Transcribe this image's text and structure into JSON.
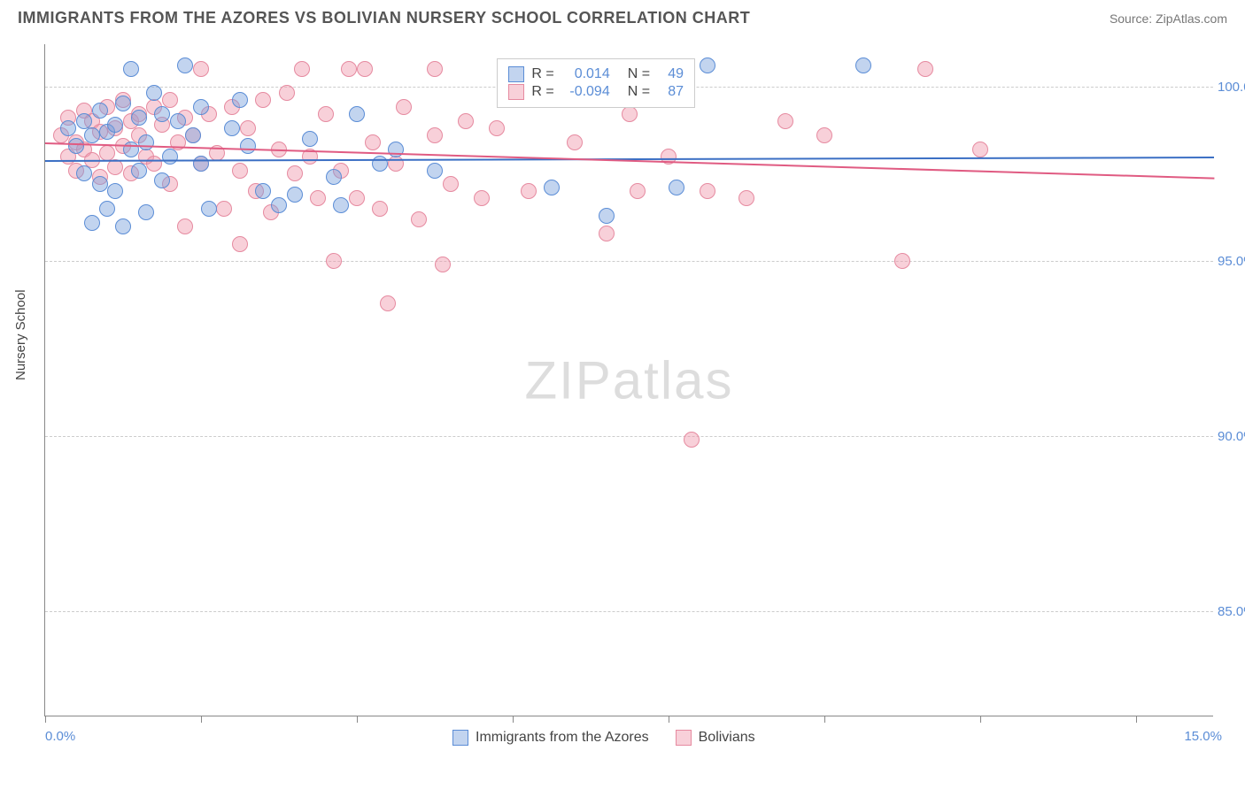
{
  "title": "IMMIGRANTS FROM THE AZORES VS BOLIVIAN NURSERY SCHOOL CORRELATION CHART",
  "source": "Source: ZipAtlas.com",
  "watermark_left": "ZIP",
  "watermark_right": "atlas",
  "yaxis_label": "Nursery School",
  "chart": {
    "type": "scatter",
    "xlim": [
      0,
      15
    ],
    "ylim": [
      82,
      101.2
    ],
    "xticks": [
      0,
      2,
      4,
      6,
      8,
      10,
      12,
      14
    ],
    "yticks": [
      85,
      90,
      95,
      100
    ],
    "xaxis_labels": {
      "left": "0.0%",
      "right": "15.0%"
    },
    "y_format_suffix": ".0%",
    "grid_color": "#cccccc",
    "background_color": "#ffffff",
    "marker_radius": 9,
    "marker_stroke": 1,
    "series": [
      {
        "name": "Immigrants from the Azores",
        "fill": "rgba(120,160,220,0.45)",
        "stroke": "#5b8dd6",
        "r": "0.014",
        "n": "49",
        "trend": {
          "y_at_x0": 97.9,
          "y_at_x15": 98.0,
          "color": "#3b6fc4",
          "width": 2
        },
        "points": [
          [
            0.3,
            98.8
          ],
          [
            0.4,
            98.3
          ],
          [
            0.5,
            99.0
          ],
          [
            0.5,
            97.5
          ],
          [
            0.6,
            98.6
          ],
          [
            0.6,
            96.1
          ],
          [
            0.7,
            99.3
          ],
          [
            0.7,
            97.2
          ],
          [
            0.8,
            98.7
          ],
          [
            0.8,
            96.5
          ],
          [
            0.9,
            98.9
          ],
          [
            0.9,
            97.0
          ],
          [
            1.0,
            99.5
          ],
          [
            1.0,
            96.0
          ],
          [
            1.1,
            100.5
          ],
          [
            1.1,
            98.2
          ],
          [
            1.2,
            99.1
          ],
          [
            1.2,
            97.6
          ],
          [
            1.3,
            98.4
          ],
          [
            1.3,
            96.4
          ],
          [
            1.4,
            99.8
          ],
          [
            1.5,
            99.2
          ],
          [
            1.5,
            97.3
          ],
          [
            1.6,
            98.0
          ],
          [
            1.7,
            99.0
          ],
          [
            1.8,
            100.6
          ],
          [
            1.9,
            98.6
          ],
          [
            2.0,
            99.4
          ],
          [
            2.0,
            97.8
          ],
          [
            2.1,
            96.5
          ],
          [
            2.4,
            98.8
          ],
          [
            2.5,
            99.6
          ],
          [
            2.6,
            98.3
          ],
          [
            2.8,
            97.0
          ],
          [
            3.0,
            96.6
          ],
          [
            3.2,
            96.9
          ],
          [
            3.4,
            98.5
          ],
          [
            3.7,
            97.4
          ],
          [
            3.8,
            96.6
          ],
          [
            4.0,
            99.2
          ],
          [
            4.3,
            97.8
          ],
          [
            4.5,
            98.2
          ],
          [
            5.0,
            97.6
          ],
          [
            6.5,
            97.1
          ],
          [
            7.2,
            96.3
          ],
          [
            8.1,
            97.1
          ],
          [
            8.5,
            100.6
          ],
          [
            10.5,
            100.6
          ],
          [
            8.0,
            100.5
          ]
        ]
      },
      {
        "name": "Bolivians",
        "fill": "rgba(240,150,170,0.45)",
        "stroke": "#e68aa0",
        "r": "-0.094",
        "n": "87",
        "trend": {
          "y_at_x0": 98.4,
          "y_at_x15": 97.4,
          "color": "#e05b82",
          "width": 2
        },
        "points": [
          [
            0.2,
            98.6
          ],
          [
            0.3,
            99.1
          ],
          [
            0.3,
            98.0
          ],
          [
            0.4,
            98.4
          ],
          [
            0.4,
            97.6
          ],
          [
            0.5,
            99.3
          ],
          [
            0.5,
            98.2
          ],
          [
            0.6,
            99.0
          ],
          [
            0.6,
            97.9
          ],
          [
            0.7,
            98.7
          ],
          [
            0.7,
            97.4
          ],
          [
            0.8,
            99.4
          ],
          [
            0.8,
            98.1
          ],
          [
            0.9,
            98.8
          ],
          [
            0.9,
            97.7
          ],
          [
            1.0,
            99.6
          ],
          [
            1.0,
            98.3
          ],
          [
            1.1,
            99.0
          ],
          [
            1.1,
            97.5
          ],
          [
            1.2,
            98.6
          ],
          [
            1.2,
            99.2
          ],
          [
            1.3,
            98.0
          ],
          [
            1.4,
            99.4
          ],
          [
            1.4,
            97.8
          ],
          [
            1.5,
            98.9
          ],
          [
            1.6,
            99.6
          ],
          [
            1.6,
            97.2
          ],
          [
            1.7,
            98.4
          ],
          [
            1.8,
            99.1
          ],
          [
            1.8,
            96.0
          ],
          [
            1.9,
            98.6
          ],
          [
            2.0,
            100.5
          ],
          [
            2.0,
            97.8
          ],
          [
            2.1,
            99.2
          ],
          [
            2.2,
            98.1
          ],
          [
            2.3,
            96.5
          ],
          [
            2.4,
            99.4
          ],
          [
            2.5,
            97.6
          ],
          [
            2.5,
            95.5
          ],
          [
            2.6,
            98.8
          ],
          [
            2.7,
            97.0
          ],
          [
            2.8,
            99.6
          ],
          [
            2.9,
            96.4
          ],
          [
            3.0,
            98.2
          ],
          [
            3.1,
            99.8
          ],
          [
            3.2,
            97.5
          ],
          [
            3.3,
            100.5
          ],
          [
            3.4,
            98.0
          ],
          [
            3.5,
            96.8
          ],
          [
            3.6,
            99.2
          ],
          [
            3.7,
            95.0
          ],
          [
            3.8,
            97.6
          ],
          [
            3.9,
            100.5
          ],
          [
            4.0,
            96.8
          ],
          [
            4.1,
            100.5
          ],
          [
            4.2,
            98.4
          ],
          [
            4.3,
            96.5
          ],
          [
            4.4,
            93.8
          ],
          [
            4.5,
            97.8
          ],
          [
            4.6,
            99.4
          ],
          [
            4.8,
            96.2
          ],
          [
            5.0,
            100.5
          ],
          [
            5.0,
            98.6
          ],
          [
            5.1,
            94.9
          ],
          [
            5.2,
            97.2
          ],
          [
            5.4,
            99.0
          ],
          [
            5.6,
            96.8
          ],
          [
            5.8,
            98.8
          ],
          [
            6.0,
            100.5
          ],
          [
            6.2,
            97.0
          ],
          [
            6.5,
            100.5
          ],
          [
            6.8,
            98.4
          ],
          [
            7.0,
            100.5
          ],
          [
            7.2,
            95.8
          ],
          [
            7.5,
            99.2
          ],
          [
            7.6,
            97.0
          ],
          [
            7.8,
            100.5
          ],
          [
            8.0,
            98.0
          ],
          [
            8.2,
            100.5
          ],
          [
            8.3,
            89.9
          ],
          [
            8.5,
            97.0
          ],
          [
            9.0,
            96.8
          ],
          [
            9.5,
            99.0
          ],
          [
            10.0,
            98.6
          ],
          [
            11.0,
            95.0
          ],
          [
            11.3,
            100.5
          ],
          [
            12.0,
            98.2
          ]
        ]
      }
    ]
  },
  "legend_top": {
    "r_label": "R =",
    "n_label": "N ="
  },
  "legend_bottom": {
    "items": [
      {
        "label": "Immigrants from the Azores",
        "series": 0
      },
      {
        "label": "Bolivians",
        "series": 1
      }
    ]
  }
}
